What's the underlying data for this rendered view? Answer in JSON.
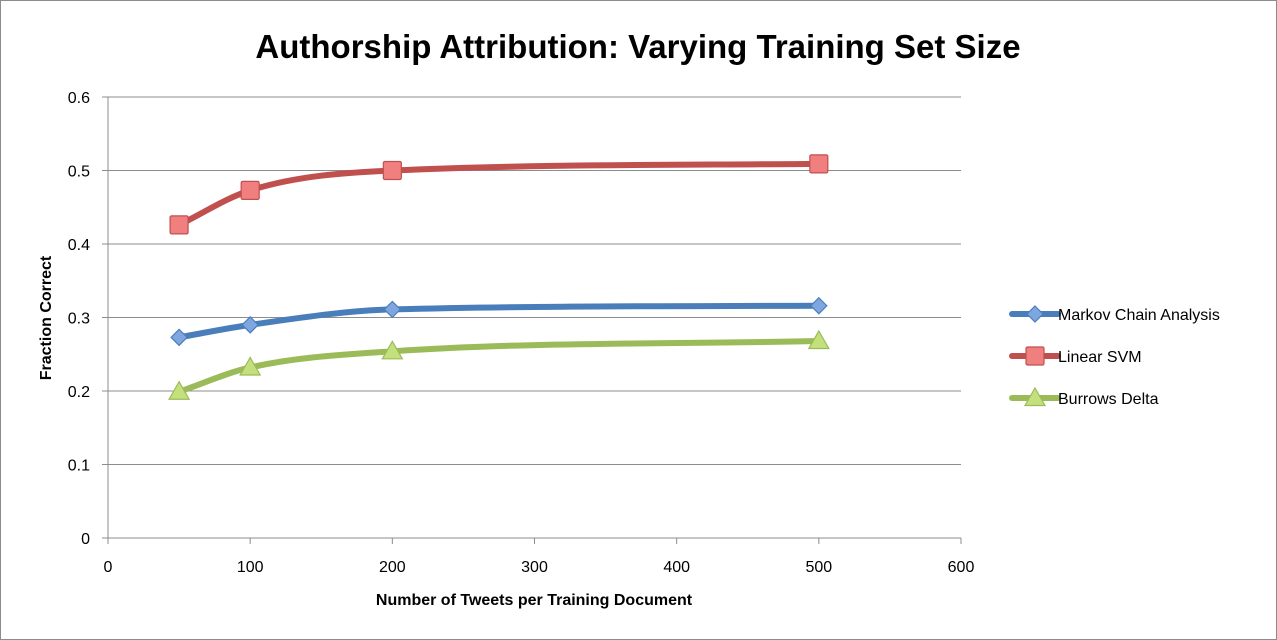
{
  "chart_data": {
    "type": "line",
    "title": "Authorship Attribution: Varying Training Set Size",
    "xlabel": "Number of Tweets per Training Document",
    "ylabel": "Fraction Correct",
    "xlim": [
      0,
      600
    ],
    "ylim": [
      0,
      0.6
    ],
    "x_ticks": [
      "0",
      "100",
      "200",
      "300",
      "400",
      "500",
      "600"
    ],
    "y_ticks": [
      "0",
      "0.1",
      "0.2",
      "0.3",
      "0.4",
      "0.5",
      "0.6"
    ],
    "grid": "horizontal",
    "legend_position": "right",
    "x": [
      50,
      100,
      200,
      500
    ],
    "series": [
      {
        "name": "Markov Chain Analysis",
        "values": [
          0.273,
          0.29,
          0.311,
          0.316
        ],
        "color": "#4a7ebb",
        "marker": "diamond",
        "marker_fill": "#7fa6e0"
      },
      {
        "name": "Linear SVM",
        "values": [
          0.426,
          0.473,
          0.5,
          0.509
        ],
        "color": "#c0504d",
        "marker": "square",
        "marker_fill": "#f08080"
      },
      {
        "name": "Burrows Delta",
        "values": [
          0.199,
          0.232,
          0.254,
          0.268
        ],
        "color": "#9bbb59",
        "marker": "triangle",
        "marker_fill": "#c3e07d"
      }
    ]
  }
}
